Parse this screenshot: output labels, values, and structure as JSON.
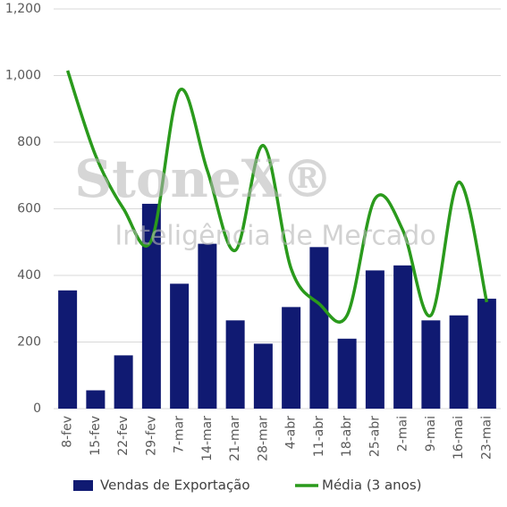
{
  "chart_data": {
    "type": "bar",
    "categories": [
      "8-fev",
      "15-fev",
      "22-fev",
      "29-fev",
      "7-mar",
      "14-mar",
      "21-mar",
      "28-mar",
      "4-abr",
      "11-abr",
      "18-abr",
      "25-abr",
      "2-mai",
      "9-mai",
      "16-mai",
      "23-mai"
    ],
    "series": [
      {
        "name": "Vendas de Exportação",
        "type": "bar",
        "color": "#101a72",
        "values": [
          355,
          55,
          160,
          615,
          375,
          495,
          265,
          195,
          305,
          485,
          210,
          415,
          430,
          265,
          280,
          330
        ]
      },
      {
        "name": "Média (3 anos)",
        "type": "line",
        "color": "#2a9a1c",
        "values": [
          1015,
          760,
          600,
          505,
          955,
          715,
          475,
          790,
          420,
          315,
          280,
          630,
          535,
          280,
          680,
          320
        ]
      }
    ],
    "ylim": [
      0,
      1200
    ],
    "yticks": [
      0,
      200,
      400,
      600,
      800,
      {
        "value": 1000,
        "label": "1,000"
      },
      {
        "value": 1200,
        "label": "1,200"
      }
    ],
    "grid": true,
    "legend": "bottom",
    "annotations": [
      "StoneX®",
      "Inteligência de Mercado"
    ]
  }
}
